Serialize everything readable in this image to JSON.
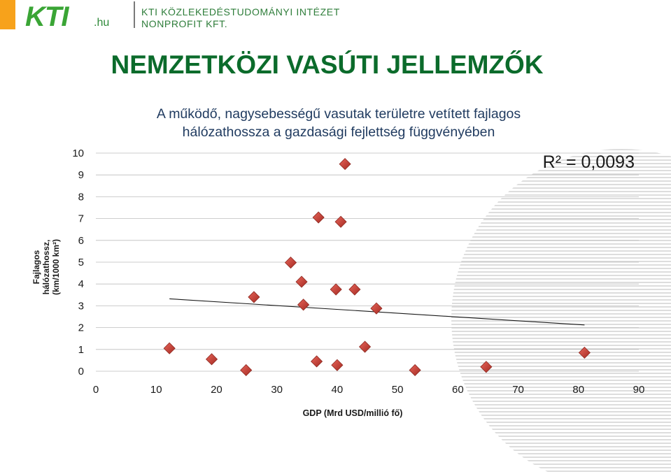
{
  "header": {
    "logo": "KTI",
    "logo_tld": ".hu",
    "org_line1": "KTI KÖZLEKEDÉSTUDOMÁNYI INTÉZET",
    "org_line2": "NONPROFIT KFT."
  },
  "page_title": "NEMZETKÖZI VASÚTI JELLEMZŐK",
  "colors": {
    "accent_orange": "#f7a21b",
    "brand_green": "#0b6b2b",
    "marker": "#c0392b"
  },
  "chart_data": {
    "type": "scatter",
    "title_line1": "A működő, nagysebességű vasutak területre vetített fajlagos",
    "title_line2": "hálózathossza  a gazdasági fejlettség függvényében",
    "xlabel": "GDP (Mrd USD/millió fő)",
    "ylabel_line1": "Fajlagos",
    "ylabel_line2": "hálózathossz,",
    "ylabel_line3": "(km/1000 km²)",
    "xlim": [
      0,
      90
    ],
    "ylim": [
      0,
      10
    ],
    "xticks": [
      "0",
      "10",
      "20",
      "30",
      "40",
      "50",
      "60",
      "70",
      "80",
      "90"
    ],
    "yticks": [
      "0",
      "1",
      "2",
      "3",
      "4",
      "5",
      "6",
      "7",
      "8",
      "9",
      "10"
    ],
    "grid": "horizontal",
    "annotation": "R² = 0,0093",
    "points": [
      {
        "x": 12.2,
        "y": 1.05
      },
      {
        "x": 19.2,
        "y": 0.55
      },
      {
        "x": 24.9,
        "y": 0.05
      },
      {
        "x": 26.2,
        "y": 3.4
      },
      {
        "x": 32.3,
        "y": 4.98
      },
      {
        "x": 34.1,
        "y": 4.1
      },
      {
        "x": 34.4,
        "y": 3.05
      },
      {
        "x": 36.6,
        "y": 0.45
      },
      {
        "x": 36.9,
        "y": 7.05
      },
      {
        "x": 39.8,
        "y": 3.75
      },
      {
        "x": 40.0,
        "y": 0.28
      },
      {
        "x": 40.6,
        "y": 6.85
      },
      {
        "x": 41.3,
        "y": 9.5
      },
      {
        "x": 42.9,
        "y": 3.75
      },
      {
        "x": 44.6,
        "y": 1.12
      },
      {
        "x": 46.5,
        "y": 2.88
      },
      {
        "x": 52.9,
        "y": 0.05
      },
      {
        "x": 64.7,
        "y": 0.2
      },
      {
        "x": 81.0,
        "y": 0.85
      }
    ],
    "trendline": {
      "x": [
        12.2,
        81.0
      ],
      "y": [
        3.32,
        2.12
      ]
    }
  }
}
